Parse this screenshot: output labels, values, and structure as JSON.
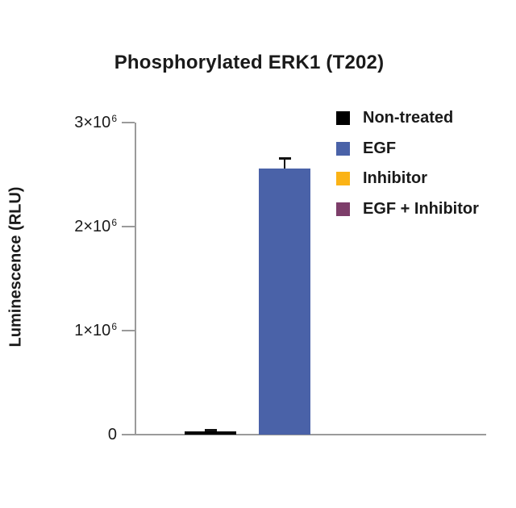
{
  "chart_data": {
    "type": "bar",
    "title": "Phosphorylated ERK1 (T202)",
    "ylabel": "Luminescence (RLU)",
    "xlabel": "",
    "categories": [
      "Non-treated",
      "EGF",
      "Inhibitor",
      "EGF + Inhibitor"
    ],
    "values": [
      30000,
      2560000,
      0,
      0
    ],
    "errors": [
      20000,
      100000,
      0,
      0
    ],
    "bar_colors": [
      "#000000",
      "#4a62a8",
      "#fbb316",
      "#7d3e6a"
    ],
    "ylim": [
      0,
      3000000
    ],
    "yticks": [
      {
        "value": 0,
        "base": "0",
        "sup": ""
      },
      {
        "value": 1000000,
        "base": "1×10",
        "sup": "6"
      },
      {
        "value": 2000000,
        "base": "2×10",
        "sup": "6"
      },
      {
        "value": 3000000,
        "base": "3×10",
        "sup": "6"
      }
    ],
    "grid": false,
    "error_bar_style": "T-cap, upper only",
    "legend_position": "upper right",
    "legend": [
      {
        "label": "Non-treated",
        "color": "#000000"
      },
      {
        "label": "EGF",
        "color": "#4a62a8"
      },
      {
        "label": "Inhibitor",
        "color": "#fbb316"
      },
      {
        "label": "EGF + Inhibitor",
        "color": "#7d3e6a"
      }
    ]
  }
}
